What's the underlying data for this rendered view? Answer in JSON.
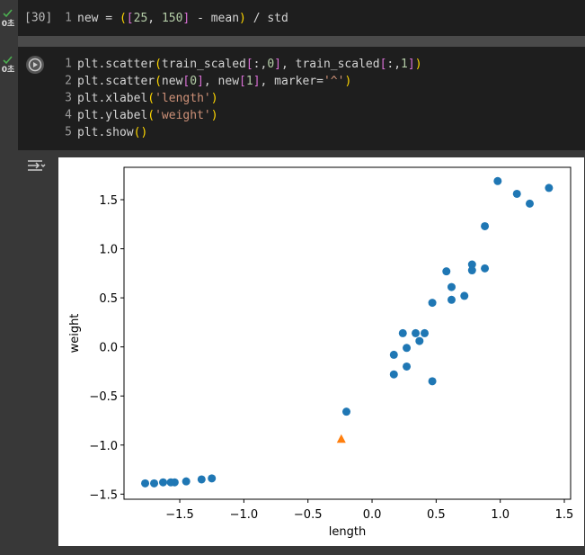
{
  "cells": [
    {
      "status": "0초",
      "execution_count": "[30]",
      "lines": [
        {
          "number": "1",
          "tokens": [
            {
              "text": "new = ",
              "color": "#d4d4d4"
            },
            {
              "text": "(",
              "color": "#ffd700"
            },
            {
              "text": "[",
              "color": "#da70d6"
            },
            {
              "text": "25",
              "color": "#b5cea8"
            },
            {
              "text": ", ",
              "color": "#d4d4d4"
            },
            {
              "text": "150",
              "color": "#b5cea8"
            },
            {
              "text": "]",
              "color": "#da70d6"
            },
            {
              "text": " - mean",
              "color": "#d4d4d4"
            },
            {
              "text": ")",
              "color": "#ffd700"
            },
            {
              "text": " / std",
              "color": "#d4d4d4"
            }
          ]
        }
      ]
    },
    {
      "status": "0초",
      "lines": [
        {
          "number": "1",
          "tokens": [
            {
              "text": "plt.scatter",
              "color": "#d4d4d4"
            },
            {
              "text": "(",
              "color": "#ffd700"
            },
            {
              "text": "train_scaled",
              "color": "#d4d4d4"
            },
            {
              "text": "[",
              "color": "#da70d6"
            },
            {
              "text": ":,",
              "color": "#d4d4d4"
            },
            {
              "text": "0",
              "color": "#b5cea8"
            },
            {
              "text": "]",
              "color": "#da70d6"
            },
            {
              "text": ", train_scaled",
              "color": "#d4d4d4"
            },
            {
              "text": "[",
              "color": "#da70d6"
            },
            {
              "text": ":,",
              "color": "#d4d4d4"
            },
            {
              "text": "1",
              "color": "#b5cea8"
            },
            {
              "text": "]",
              "color": "#da70d6"
            },
            {
              "text": ")",
              "color": "#ffd700"
            }
          ]
        },
        {
          "number": "2",
          "tokens": [
            {
              "text": "plt.scatter",
              "color": "#d4d4d4"
            },
            {
              "text": "(",
              "color": "#ffd700"
            },
            {
              "text": "new",
              "color": "#d4d4d4"
            },
            {
              "text": "[",
              "color": "#da70d6"
            },
            {
              "text": "0",
              "color": "#b5cea8"
            },
            {
              "text": "]",
              "color": "#da70d6"
            },
            {
              "text": ", new",
              "color": "#d4d4d4"
            },
            {
              "text": "[",
              "color": "#da70d6"
            },
            {
              "text": "1",
              "color": "#b5cea8"
            },
            {
              "text": "]",
              "color": "#da70d6"
            },
            {
              "text": ", marker=",
              "color": "#d4d4d4"
            },
            {
              "text": "'^'",
              "color": "#ce9178"
            },
            {
              "text": ")",
              "color": "#ffd700"
            }
          ]
        },
        {
          "number": "3",
          "tokens": [
            {
              "text": "plt.xlabel",
              "color": "#d4d4d4"
            },
            {
              "text": "(",
              "color": "#ffd700"
            },
            {
              "text": "'length'",
              "color": "#ce9178"
            },
            {
              "text": ")",
              "color": "#ffd700"
            }
          ]
        },
        {
          "number": "4",
          "tokens": [
            {
              "text": "plt.ylabel",
              "color": "#d4d4d4"
            },
            {
              "text": "(",
              "color": "#ffd700"
            },
            {
              "text": "'weight'",
              "color": "#ce9178"
            },
            {
              "text": ")",
              "color": "#ffd700"
            }
          ]
        },
        {
          "number": "5",
          "tokens": [
            {
              "text": "plt.show",
              "color": "#d4d4d4"
            },
            {
              "text": "()",
              "color": "#ffd700"
            }
          ]
        }
      ]
    }
  ],
  "chart_data": {
    "type": "scatter",
    "xlabel": "length",
    "ylabel": "weight",
    "xlim": [
      -1.935,
      1.549
    ],
    "ylim": [
      -1.552,
      1.83
    ],
    "xticks": [
      {
        "value": -1.5,
        "label": "−1.5"
      },
      {
        "value": -1,
        "label": "−1.0"
      },
      {
        "value": -0.5,
        "label": "−0.5"
      },
      {
        "value": 0,
        "label": "0.0"
      },
      {
        "value": 0.5,
        "label": "0.5"
      },
      {
        "value": 1,
        "label": "1.0"
      },
      {
        "value": 1.5,
        "label": "1.5"
      }
    ],
    "yticks": [
      {
        "value": -1.5,
        "label": "−1.5"
      },
      {
        "value": -1,
        "label": "−1.0"
      },
      {
        "value": -0.5,
        "label": "−0.5"
      },
      {
        "value": 0,
        "label": "0.0"
      },
      {
        "value": 0.5,
        "label": "0.5"
      },
      {
        "value": 1,
        "label": "1.0"
      },
      {
        "value": 1.5,
        "label": "1.5"
      }
    ],
    "series": [
      {
        "color": "#1f77b4",
        "marker": "o",
        "x": [
          0.98,
          1.13,
          1.23,
          1.38,
          0.88,
          0.88,
          0.78,
          0.78,
          0.58,
          0.62,
          0.62,
          0.72,
          0.47,
          0.24,
          0.34,
          0.41,
          0.37,
          0.27,
          0.17,
          0.27,
          0.17,
          0.47,
          -0.2,
          -1.25,
          -1.33,
          -1.45,
          -1.54,
          -1.57,
          -1.63,
          -1.7,
          -1.77
        ],
        "y": [
          1.69,
          1.56,
          1.46,
          1.62,
          1.23,
          0.8,
          0.84,
          0.78,
          0.77,
          0.61,
          0.48,
          0.52,
          0.45,
          0.14,
          0.14,
          0.14,
          0.06,
          -0.01,
          -0.08,
          -0.2,
          -0.28,
          -0.35,
          -0.66,
          -1.34,
          -1.35,
          -1.37,
          -1.38,
          -1.38,
          -1.38,
          -1.39,
          -1.39
        ]
      },
      {
        "color": "#ff7f0e",
        "marker": "^",
        "x": [
          -0.24
        ],
        "y": [
          -0.94
        ]
      }
    ]
  }
}
